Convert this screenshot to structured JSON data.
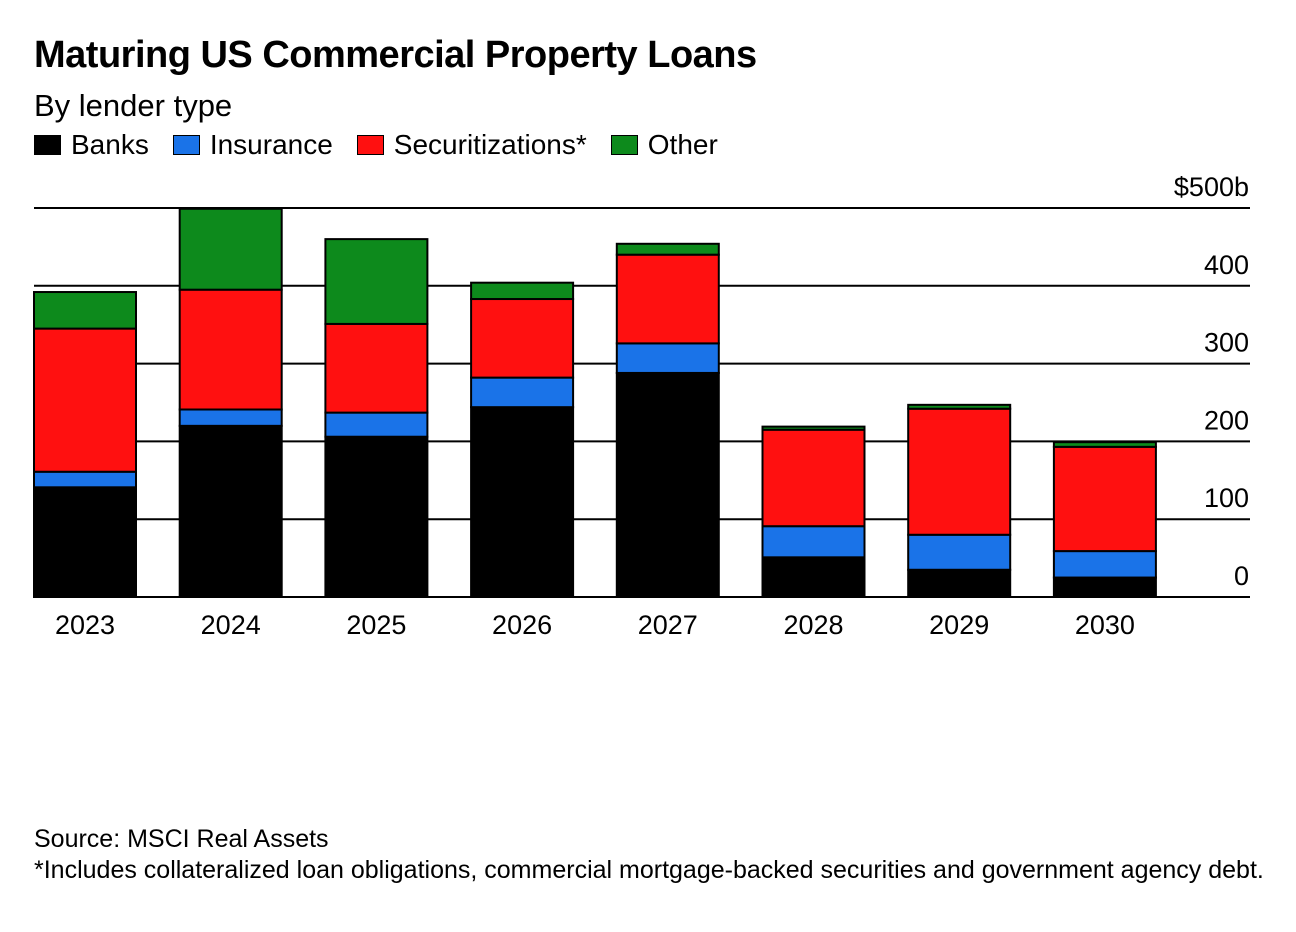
{
  "title": "Maturing US Commercial Property Loans",
  "subtitle": "By lender type",
  "legend": [
    {
      "label": "Banks",
      "color": "#000000"
    },
    {
      "label": "Insurance",
      "color": "#1a73e8"
    },
    {
      "label": "Securitizations*",
      "color": "#ff1010"
    },
    {
      "label": "Other",
      "color": "#0d8a1c"
    }
  ],
  "footer": {
    "source": "Source: MSCI Real Assets",
    "note": "*Includes collateralized loan obligations, commercial mortgage-backed securities and government agency debt."
  },
  "chart_data": {
    "type": "bar",
    "stacked": true,
    "categories": [
      "2023",
      "2024",
      "2025",
      "2026",
      "2027",
      "2028",
      "2029",
      "2030"
    ],
    "series": [
      {
        "name": "Banks",
        "color": "#000000",
        "values": [
          141,
          220,
          206,
          244,
          288,
          51,
          35,
          25
        ]
      },
      {
        "name": "Insurance",
        "color": "#1a73e8",
        "values": [
          20,
          21,
          31,
          38,
          38,
          40,
          45,
          34
        ]
      },
      {
        "name": "Securitizations*",
        "color": "#ff1010",
        "values": [
          184,
          154,
          114,
          101,
          114,
          124,
          162,
          134
        ]
      },
      {
        "name": "Other",
        "color": "#0d8a1c",
        "values": [
          47,
          104,
          109,
          21,
          14,
          4,
          5,
          6
        ]
      }
    ],
    "ylim": [
      0,
      500
    ],
    "yticks": [
      "0",
      "100",
      "200",
      "300",
      "400",
      "$500b"
    ],
    "ytick_values": [
      0,
      100,
      200,
      300,
      400,
      500
    ],
    "grid": true,
    "axis_side": "right"
  }
}
